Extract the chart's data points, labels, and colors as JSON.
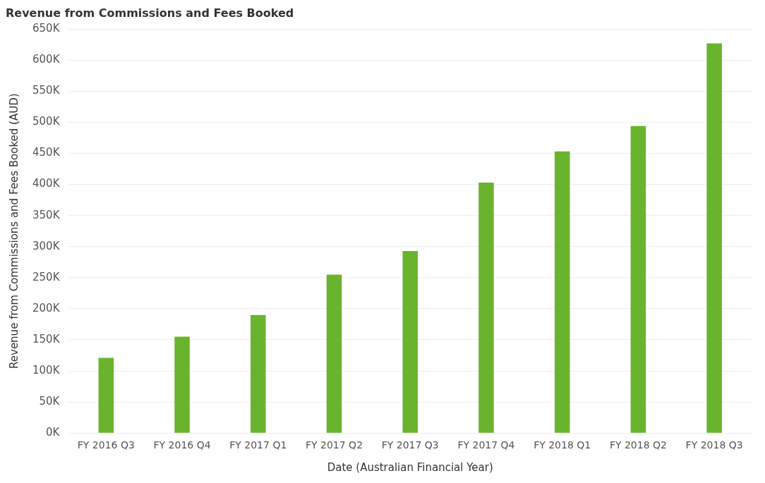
{
  "chart_data": {
    "type": "bar",
    "title": "Revenue from Commissions and Fees Booked",
    "xlabel": "Date (Australian Financial Year)",
    "ylabel": "Revenue from Commissions and Fees Booked (AUD)",
    "categories": [
      "FY 2016 Q3",
      "FY 2016 Q4",
      "FY 2017 Q1",
      "FY 2017 Q2",
      "FY 2017 Q3",
      "FY 2017 Q4",
      "FY 2018 Q1",
      "FY 2018 Q2",
      "FY 2018 Q3"
    ],
    "values": [
      121000,
      155000,
      190000,
      255000,
      293000,
      403000,
      453000,
      494000,
      627000
    ],
    "color": "#6ab42d",
    "ylim": [
      0,
      650000
    ],
    "yticks": [
      {
        "value": 0,
        "label": "0K"
      },
      {
        "value": 50000,
        "label": "50K"
      },
      {
        "value": 100000,
        "label": "100K"
      },
      {
        "value": 150000,
        "label": "150K"
      },
      {
        "value": 200000,
        "label": "200K"
      },
      {
        "value": 250000,
        "label": "250K"
      },
      {
        "value": 300000,
        "label": "300K"
      },
      {
        "value": 350000,
        "label": "350K"
      },
      {
        "value": 400000,
        "label": "400K"
      },
      {
        "value": 450000,
        "label": "450K"
      },
      {
        "value": 500000,
        "label": "500K"
      },
      {
        "value": 550000,
        "label": "550K"
      },
      {
        "value": 600000,
        "label": "600K"
      },
      {
        "value": 650000,
        "label": "650K"
      }
    ],
    "grid": "y",
    "legend": false
  }
}
